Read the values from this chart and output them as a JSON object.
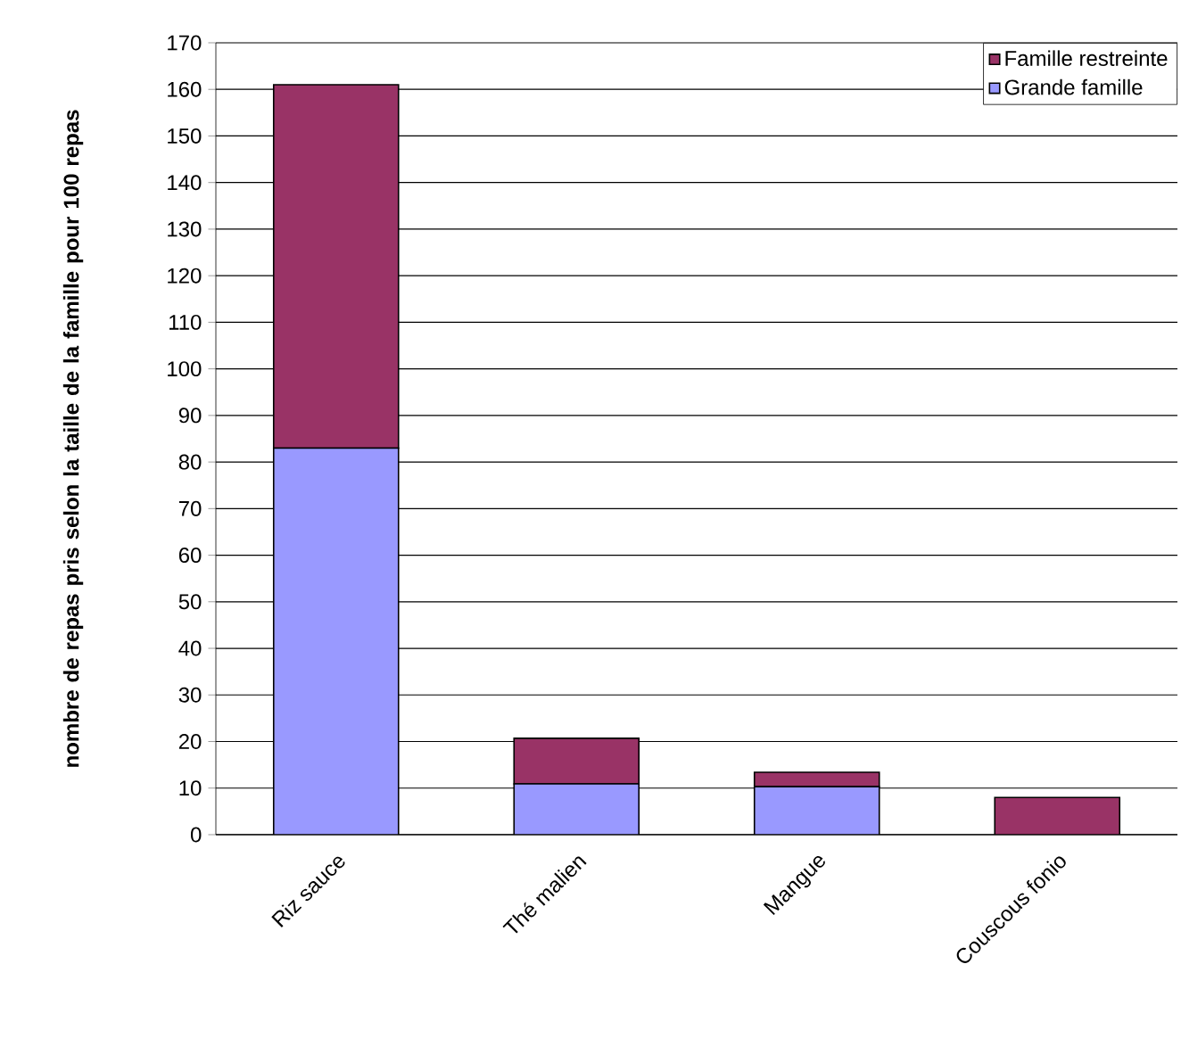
{
  "chart_data": {
    "type": "bar",
    "stacked": true,
    "ylabel": "nombre de repas pris selon la taille de la famille pour 100 repas",
    "categories": [
      "Riz sauce",
      "Thé malien",
      "Mangue",
      "Couscous fonio"
    ],
    "series": [
      {
        "name": "Grande famille",
        "color": "#9999ff",
        "values": [
          83,
          10.9,
          10.3,
          0
        ]
      },
      {
        "name": "Famille restreinte",
        "color": "#993366",
        "values": [
          78,
          9.8,
          3.1,
          8
        ]
      }
    ],
    "ylim": [
      0,
      170
    ],
    "yticks": [
      0,
      10,
      20,
      30,
      40,
      50,
      60,
      70,
      80,
      90,
      100,
      110,
      120,
      130,
      140,
      150,
      160,
      170
    ],
    "grid": "y",
    "legend": "top right"
  }
}
